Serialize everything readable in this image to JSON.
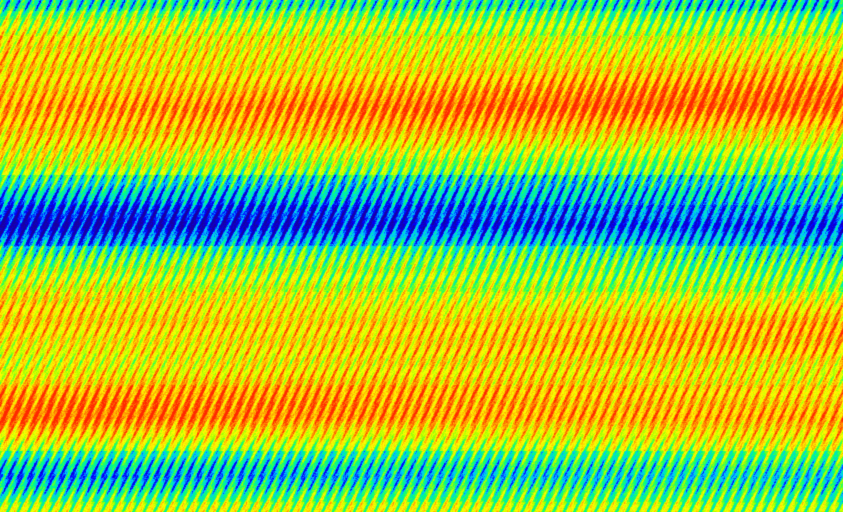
{
  "image": {
    "kind": "false-color intensity texture",
    "colormap": "jet",
    "colormap_stops": [
      "#1a00a0",
      "#0000ff",
      "#00c8ff",
      "#00ff80",
      "#a0ff00",
      "#ffff00",
      "#ffa000",
      "#ff2800"
    ],
    "band_profile": [
      {
        "from": 0.0,
        "to": 0.02,
        "level": 0.35
      },
      {
        "from": 0.02,
        "to": 0.07,
        "level": 0.6
      },
      {
        "from": 0.07,
        "to": 0.34,
        "level": 0.9
      },
      {
        "from": 0.34,
        "to": 0.4,
        "level": 0.35
      },
      {
        "from": 0.4,
        "to": 0.48,
        "level": 0.12
      },
      {
        "from": 0.48,
        "to": 0.57,
        "level": 0.55
      },
      {
        "from": 0.57,
        "to": 0.69,
        "level": 0.82
      },
      {
        "from": 0.69,
        "to": 0.75,
        "level": 0.7
      },
      {
        "from": 0.75,
        "to": 0.88,
        "level": 0.9
      },
      {
        "from": 0.88,
        "to": 0.98,
        "level": 0.3
      },
      {
        "from": 0.98,
        "to": 1.0,
        "level": 0.6
      }
    ]
  }
}
